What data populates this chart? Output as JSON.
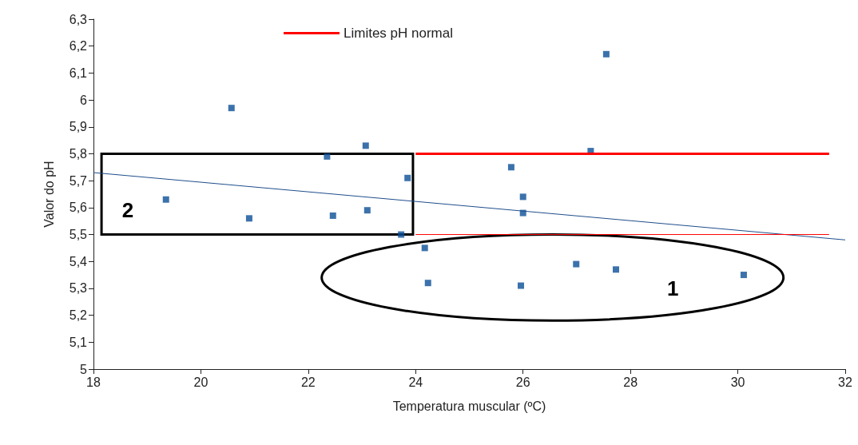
{
  "chart_data": {
    "type": "scatter",
    "xlabel": "Temperatura muscular (ºC)",
    "ylabel": "Valor do pH",
    "xlim": [
      18,
      32
    ],
    "xticks": [
      18,
      20,
      22,
      24,
      26,
      28,
      30,
      32
    ],
    "ylim": [
      5,
      6.3
    ],
    "yticks": [
      5,
      {
        "value": 5.1,
        "label": "5,1"
      },
      {
        "value": 5.2,
        "label": "5,2"
      },
      {
        "value": 5.3,
        "label": "5,3"
      },
      {
        "value": 5.4,
        "label": "5,4"
      },
      {
        "value": 5.5,
        "label": "5,5"
      },
      {
        "value": 5.6,
        "label": "5,6"
      },
      {
        "value": 5.7,
        "label": "5,7"
      },
      {
        "value": 5.8,
        "label": "5,8"
      },
      {
        "value": 5.9,
        "label": "5,9"
      },
      6,
      {
        "value": 6.1,
        "label": "6,1"
      },
      {
        "value": 6.2,
        "label": "6,2"
      },
      {
        "value": 6.3,
        "label": "6,3"
      }
    ],
    "grid": false,
    "legend": "top",
    "series": [
      {
        "marker": "square",
        "color": "#0b4f96",
        "x": [
          19.35,
          20.57,
          20.9,
          22.35,
          22.46,
          23.07,
          23.1,
          23.85,
          23.73,
          24.17,
          24.23,
          25.78,
          26.0,
          26.0,
          25.96,
          26.99,
          27.26,
          27.55,
          27.73,
          30.11
        ],
        "values": [
          5.63,
          5.97,
          5.56,
          5.79,
          5.57,
          5.83,
          5.59,
          5.71,
          5.5,
          5.45,
          5.32,
          5.75,
          5.64,
          5.58,
          5.31,
          5.39,
          5.81,
          6.17,
          5.37,
          5.35
        ]
      },
      {
        "type": "line",
        "marker": "none",
        "color": "#1f4e8c",
        "x": [
          18,
          32
        ],
        "values": [
          5.73,
          5.48
        ]
      },
      {
        "type": "line",
        "marker": "none",
        "name": "Limites pH normal",
        "color": "#ff0000",
        "x": [
          24,
          31.7
        ],
        "values": [
          5.8,
          5.8
        ]
      },
      {
        "type": "line",
        "marker": "none",
        "color": "#ff0000",
        "x": [
          24,
          31.7
        ],
        "values": [
          5.5,
          5.5
        ]
      }
    ],
    "annotations": [
      "2",
      "1"
    ]
  }
}
